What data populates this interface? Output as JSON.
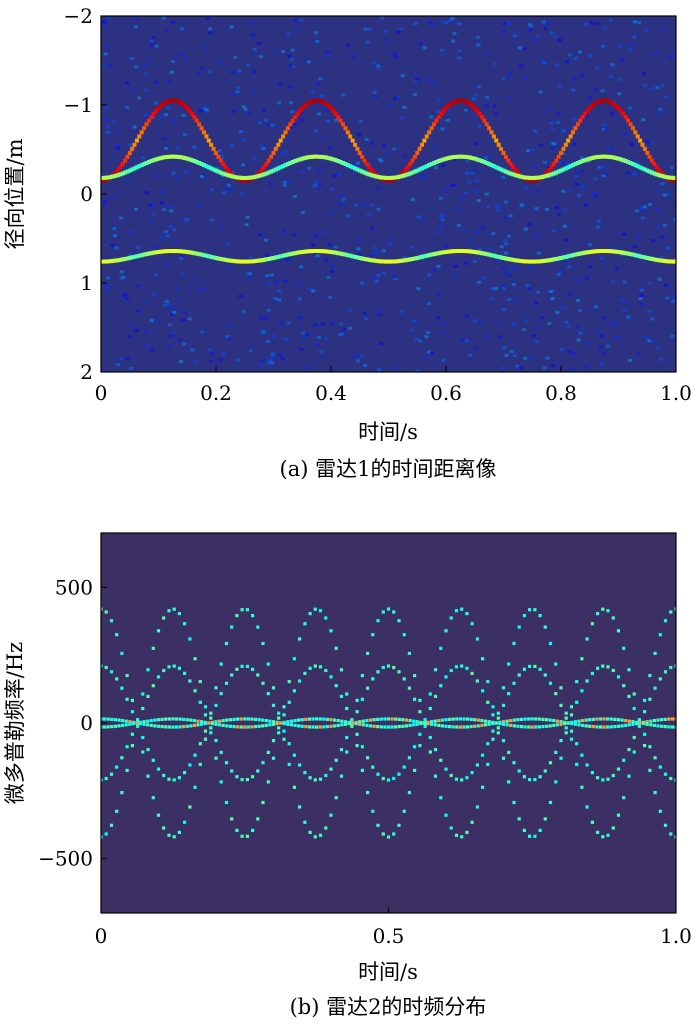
{
  "chart_data": [
    {
      "type": "heatmap",
      "caption": "(a) 雷达1的时间距离像",
      "xlabel": "时间/s",
      "ylabel": "径向位置/m",
      "xlim": [
        0,
        1.0
      ],
      "ylim": [
        2,
        -2
      ],
      "y_inverted": true,
      "xticks": [
        {
          "value": 0,
          "label": "0"
        },
        {
          "value": 0.2,
          "label": "0.2"
        },
        {
          "value": 0.4,
          "label": "0.4"
        },
        {
          "value": 0.6,
          "label": "0.6"
        },
        {
          "value": 0.8,
          "label": "0.8"
        },
        {
          "value": 1.0,
          "label": "1.0"
        }
      ],
      "yticks": [
        {
          "value": -2,
          "label": "−2"
        },
        {
          "value": -1,
          "label": "−1"
        },
        {
          "value": 0,
          "label": "0"
        },
        {
          "value": 1,
          "label": "1"
        },
        {
          "value": 2,
          "label": "2"
        }
      ],
      "colormap": "jet",
      "background_color": "#2c3182",
      "grid": false,
      "series": [
        {
          "mid": -0.6,
          "amp": 0.45,
          "period": 0.25,
          "phase": 0.0,
          "intensity": 0.95
        },
        {
          "mid": -0.3,
          "amp": 0.12,
          "period": 0.25,
          "phase": 0.0,
          "intensity": 0.55
        },
        {
          "mid": 0.7,
          "amp": 0.06,
          "period": 0.25,
          "phase": 0.0,
          "intensity": 0.6
        }
      ]
    },
    {
      "type": "heatmap",
      "caption": "(b) 雷达2的时频分布",
      "xlabel": "时间/s",
      "ylabel": "微多普勒频率/Hz",
      "xlim": [
        0,
        1.0
      ],
      "ylim": [
        -700,
        700
      ],
      "xticks": [
        {
          "value": 0,
          "label": "0"
        },
        {
          "value": 0.5,
          "label": "0.5"
        },
        {
          "value": 1.0,
          "label": "1.0"
        }
      ],
      "yticks": [
        {
          "value": 500,
          "label": "500"
        },
        {
          "value": 0,
          "label": "0"
        },
        {
          "value": -500,
          "label": "−500"
        }
      ],
      "colormap": "viridis-jet",
      "background_color": "#3b2f63",
      "grid": false,
      "series": [
        {
          "amp": 420,
          "period": 0.25,
          "phase": 0.0,
          "intensity": 0.55
        },
        {
          "amp": 210,
          "period": 0.25,
          "phase": 0.125,
          "intensity": 0.5
        },
        {
          "amp": 15,
          "period": 0.25,
          "phase": 0.0,
          "intensity": 0.6
        }
      ]
    }
  ]
}
